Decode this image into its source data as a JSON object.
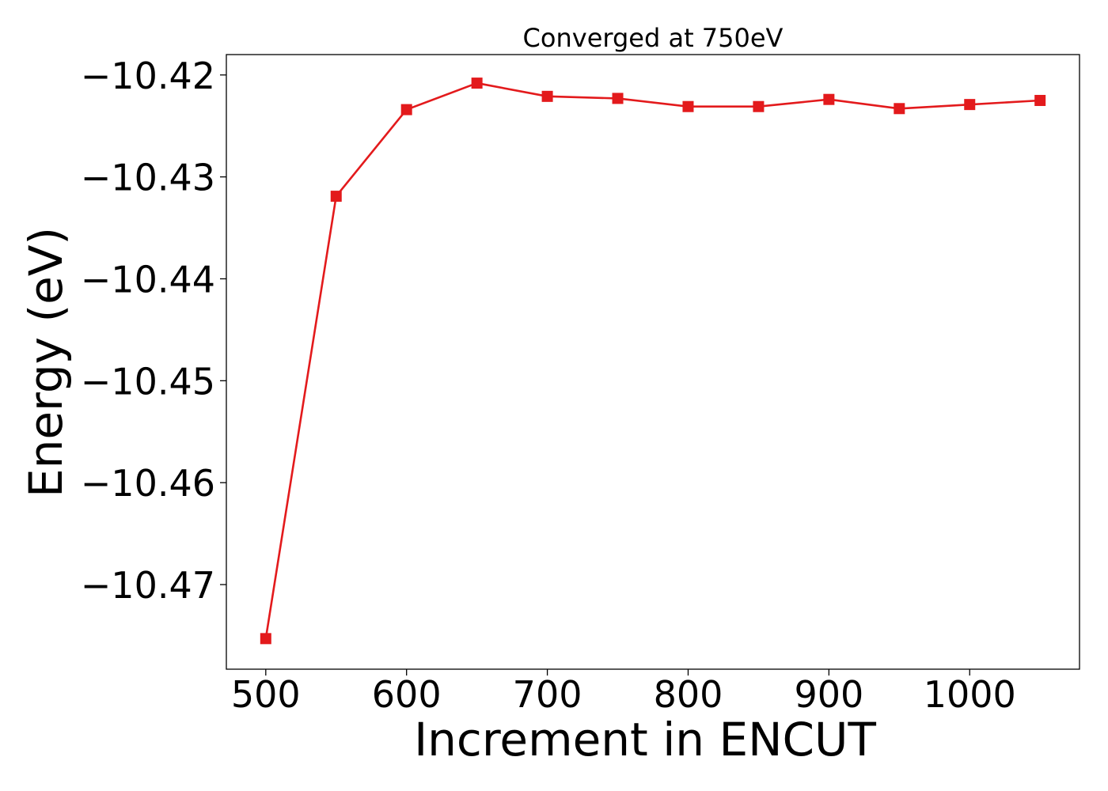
{
  "chart_data": {
    "type": "line",
    "title": "Converged at 750eV",
    "xlabel": "Increment in ENCUT",
    "ylabel": "Energy (eV)",
    "xlim": [
      472,
      1078
    ],
    "ylim": [
      -10.4783,
      -10.418
    ],
    "x_ticks": [
      500,
      600,
      700,
      800,
      900,
      1000
    ],
    "x_tick_labels": [
      "500",
      "600",
      "700",
      "800",
      "900",
      "1000"
    ],
    "y_ticks": [
      -10.42,
      -10.43,
      -10.44,
      -10.45,
      -10.46,
      -10.47
    ],
    "y_tick_labels": [
      "−10.42",
      "−10.43",
      "−10.44",
      "−10.45",
      "−10.46",
      "−10.47"
    ],
    "grid": false,
    "series": [
      {
        "color": "#e31a1c",
        "marker": "square",
        "x": [
          500,
          550,
          600,
          650,
          700,
          750,
          800,
          850,
          900,
          950,
          1000,
          1050
        ],
        "y": [
          -10.4753,
          -10.4319,
          -10.4234,
          -10.4208,
          -10.4221,
          -10.4223,
          -10.4231,
          -10.4231,
          -10.4224,
          -10.4233,
          -10.4229,
          -10.4225
        ]
      }
    ]
  }
}
